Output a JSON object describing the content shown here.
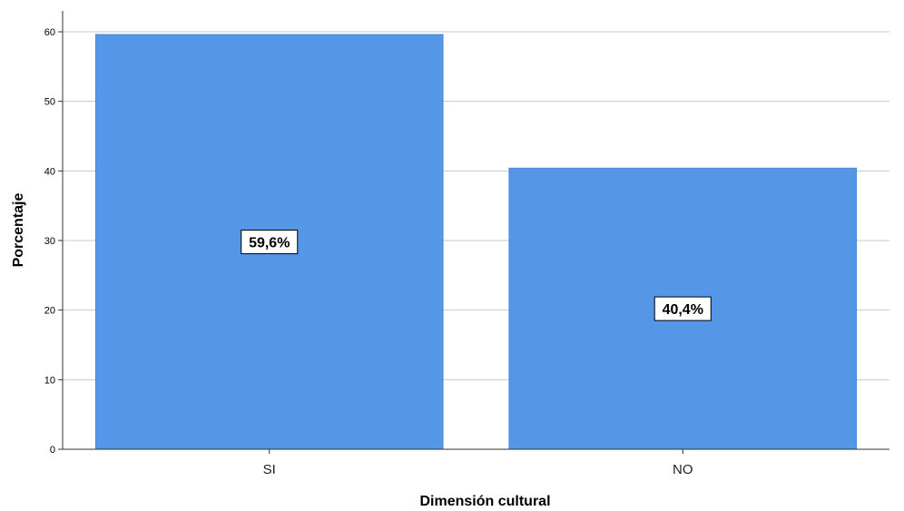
{
  "chart_data": {
    "type": "bar",
    "title": "",
    "xlabel": "Dimensión cultural",
    "ylabel": "Porcentaje",
    "categories": [
      "SI",
      "NO"
    ],
    "values": [
      59.6,
      40.4
    ],
    "data_labels": [
      "59,6%",
      "40,4%"
    ],
    "ylim": [
      0,
      63
    ],
    "yticks": [
      0,
      10,
      20,
      30,
      40,
      50,
      60
    ],
    "grid": true,
    "legend": "none",
    "bar_color": "#5596e6",
    "gridline_color": "#c8c8c8"
  }
}
